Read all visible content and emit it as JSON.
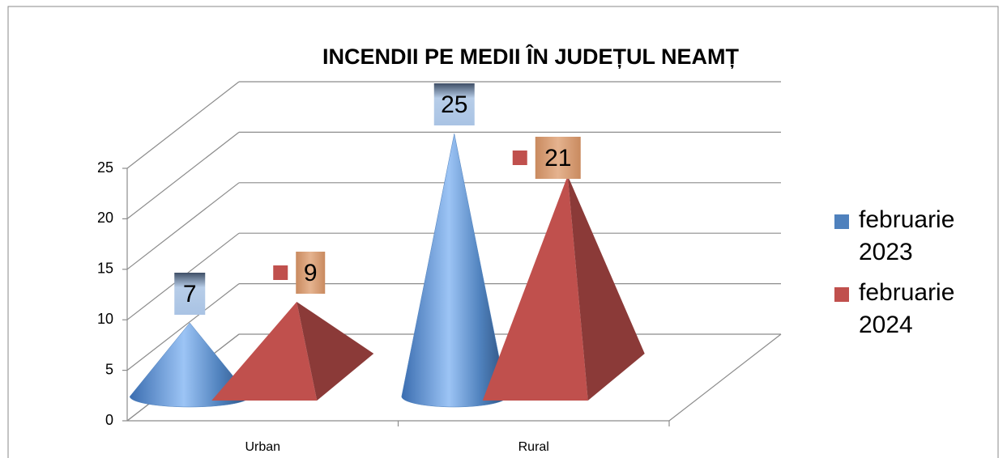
{
  "chart_data": {
    "type": "bar3d",
    "title": "INCENDII PE MEDII ÎN JUDEȚUL NEAMȚ",
    "categories": [
      "Urban",
      "Rural"
    ],
    "series": [
      {
        "name": "februarie 2023",
        "color": "#4f81bd",
        "values": [
          7,
          25
        ]
      },
      {
        "name": "februarie 2024",
        "color": "#c0504d",
        "values": [
          9,
          21
        ]
      }
    ],
    "ylim": [
      0,
      25
    ],
    "yticks": [
      0,
      5,
      10,
      15,
      20,
      25
    ],
    "grid": true,
    "legend": "right"
  }
}
